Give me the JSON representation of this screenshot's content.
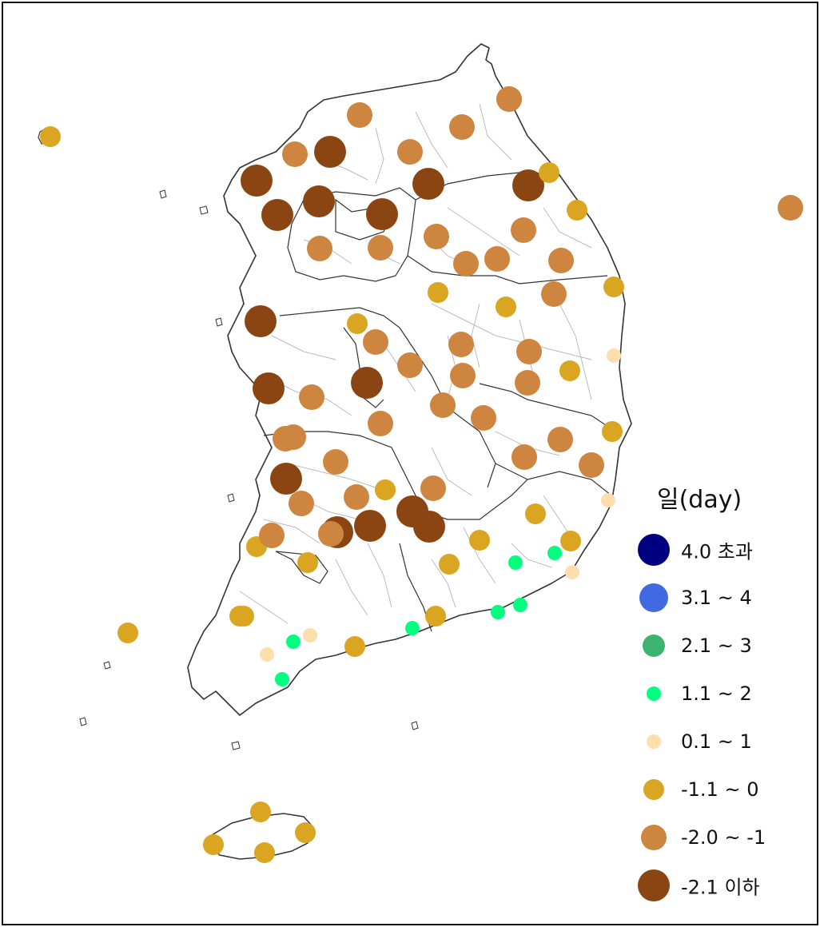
{
  "legend": {
    "title": "일(day)",
    "items": [
      {
        "label": "4.0 초과",
        "color": "#000080",
        "class": "gt4"
      },
      {
        "label": "3.1 ~ 4",
        "color": "#4169E1",
        "class": "3to4"
      },
      {
        "label": "2.1 ~ 3",
        "color": "#3CB371",
        "class": "2to3"
      },
      {
        "label": "1.1 ~ 2",
        "color": "#00FF7F",
        "class": "1to2"
      },
      {
        "label": "0.1 ~ 1",
        "color": "#FFDEAD",
        "class": "0to1"
      },
      {
        "label": "-1.1 ~ 0",
        "color": "#DAA520",
        "class": "m1to0"
      },
      {
        "label": "-2.0 ~ -1",
        "color": "#CD853F",
        "class": "m2tom1"
      },
      {
        "label": "-2.1 이하",
        "color": "#8B4513",
        "class": "lem2"
      }
    ]
  },
  "stations": [
    {
      "cls": "m1to0"
    },
    {
      "cls": "m2tom1"
    },
    {
      "cls": "m2tom1"
    },
    {
      "cls": "m2tom1"
    },
    {
      "cls": "m2tom1"
    },
    {
      "cls": "lem2"
    },
    {
      "cls": "m2tom1"
    },
    {
      "cls": "lem2"
    },
    {
      "cls": "lem2"
    },
    {
      "cls": "lem2"
    },
    {
      "cls": "lem2"
    },
    {
      "cls": "m1to0"
    },
    {
      "cls": "lem2"
    },
    {
      "cls": "lem2"
    },
    {
      "cls": "m1to0"
    },
    {
      "cls": "m2tom1"
    },
    {
      "cls": "m2tom1"
    },
    {
      "cls": "m2tom1"
    },
    {
      "cls": "m2tom1"
    },
    {
      "cls": "m2tom1"
    },
    {
      "cls": "m2tom1"
    },
    {
      "cls": "m1to0"
    },
    {
      "cls": "m1to0"
    },
    {
      "cls": "m2tom1"
    },
    {
      "cls": "m1to0"
    },
    {
      "cls": "lem2"
    },
    {
      "cls": "m1to0"
    },
    {
      "cls": "m2tom1"
    },
    {
      "cls": "m2tom1"
    },
    {
      "cls": "0to1"
    },
    {
      "cls": "m2tom1"
    },
    {
      "cls": "m2tom1"
    },
    {
      "cls": "m2tom1"
    },
    {
      "cls": "m1to0"
    },
    {
      "cls": "lem2"
    },
    {
      "cls": "m2tom1"
    },
    {
      "cls": "lem2"
    },
    {
      "cls": "m2tom1"
    },
    {
      "cls": "m2tom1"
    },
    {
      "cls": "m2tom1"
    },
    {
      "cls": "m2tom1"
    },
    {
      "cls": "m2tom1"
    },
    {
      "cls": "m1to0"
    },
    {
      "cls": "m2tom1"
    },
    {
      "cls": "m2tom1"
    },
    {
      "cls": "m2tom1"
    },
    {
      "cls": "m2tom1"
    },
    {
      "cls": "m2tom1"
    },
    {
      "cls": "lem2"
    },
    {
      "cls": "m2tom1"
    },
    {
      "cls": "m2tom1"
    },
    {
      "cls": "m1to0"
    },
    {
      "cls": "m2tom1"
    },
    {
      "cls": "m2tom1"
    },
    {
      "cls": "0to1"
    },
    {
      "cls": "lem2"
    },
    {
      "cls": "lem2"
    },
    {
      "cls": "m2tom1"
    },
    {
      "cls": "m1to0"
    },
    {
      "cls": "m1to0"
    },
    {
      "cls": "lem2"
    },
    {
      "cls": "lem2"
    },
    {
      "cls": "m1to0"
    },
    {
      "cls": "m1to0"
    },
    {
      "cls": "1to2"
    },
    {
      "cls": "1to2"
    },
    {
      "cls": "0to1"
    },
    {
      "cls": "m1to0"
    },
    {
      "cls": "m1to0"
    },
    {
      "cls": "1to2"
    },
    {
      "cls": "1to2"
    },
    {
      "cls": "1to2"
    },
    {
      "cls": "m1to0"
    },
    {
      "cls": "m1to0"
    },
    {
      "cls": "1to2"
    },
    {
      "cls": "0to1"
    },
    {
      "cls": "0to1"
    },
    {
      "cls": "1to2"
    },
    {
      "cls": "m1to0"
    },
    {
      "cls": "m1to0"
    },
    {
      "cls": "m1to0"
    },
    {
      "cls": "m1to0"
    },
    {
      "cls": "m1to0"
    },
    {
      "cls": "m1to0"
    },
    {
      "cls": "m2tom1"
    },
    {
      "cls": "m1to0"
    },
    {
      "cls": "m2tom1"
    },
    {
      "cls": "m1to0"
    }
  ]
}
